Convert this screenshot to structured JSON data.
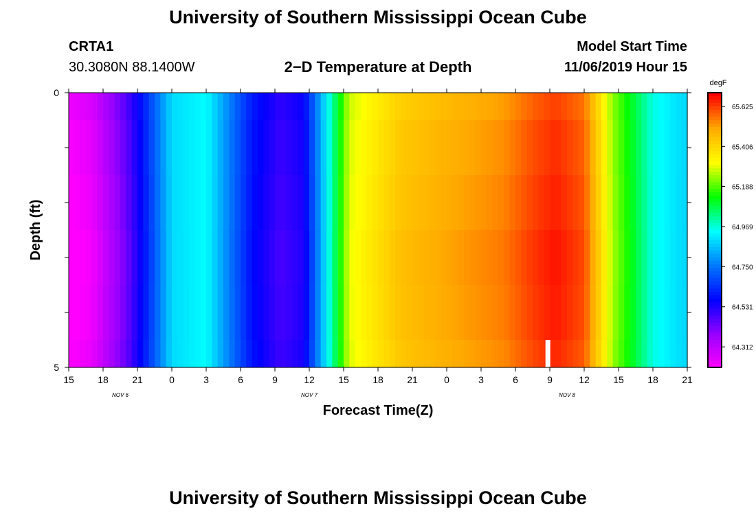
{
  "header": {
    "main_title": "University of Southern Mississippi Ocean Cube",
    "station": "CRTA1",
    "coords": "30.3080N 88.1400W",
    "subtitle": "2−D Temperature at Depth",
    "start_label": "Model Start Time",
    "start_value": "11/06/2019 Hour 15"
  },
  "footer": {
    "title": "University of Southern Mississippi Ocean Cube"
  },
  "chart_data": {
    "type": "heatmap",
    "title": "2−D Temperature at Depth",
    "xlabel": "Forecast Time(Z)",
    "ylabel": "Depth (ft)",
    "x_tick_labels": [
      "15",
      "18",
      "21",
      "0",
      "3",
      "6",
      "9",
      "12",
      "15",
      "18",
      "21",
      "0",
      "3",
      "6",
      "9",
      "12",
      "15",
      "18",
      "21"
    ],
    "date_labels": [
      {
        "text": "NOV 6",
        "tick_index": 1.5
      },
      {
        "text": "NOV 7",
        "tick_index": 7
      },
      {
        "text": "NOV 8",
        "tick_index": 14.5
      }
    ],
    "x_start": "11/06/2019 15Z",
    "x_hours_range": [
      0,
      54
    ],
    "y_tick_labels": [
      "0",
      "5"
    ],
    "y_range": [
      0,
      5
    ],
    "depth_levels": 5,
    "colorbar": {
      "unit": "degF",
      "tick_labels": [
        "65.625",
        "65.406",
        "65.188",
        "64.969",
        "64.750",
        "64.531",
        "64.312"
      ],
      "range": [
        64.2,
        65.7
      ],
      "colors": [
        "#ff00ff",
        "#9900ff",
        "#0000ff",
        "#0077ff",
        "#00ffff",
        "#00ff00",
        "#ffff00",
        "#ffaa00",
        "#ff0000"
      ]
    },
    "profiles": {
      "row_multipliers": [
        0.96,
        0.99,
        1.01,
        1.03,
        1.02,
        1.0
      ],
      "hours_keyframes": [
        0,
        2,
        5,
        6.5,
        9,
        12,
        16,
        18.5,
        20.5,
        24.5,
        29,
        33,
        38,
        40.5,
        42.5,
        45,
        47.5,
        51,
        53.5
      ],
      "temp_keyframes": [
        64.2,
        64.24,
        64.45,
        64.6,
        64.9,
        64.95,
        64.6,
        64.5,
        64.55,
        65.3,
        65.45,
        65.5,
        65.55,
        65.62,
        65.66,
        65.6,
        65.25,
        64.97,
        64.9
      ]
    },
    "marker": {
      "hour": 41.8,
      "depth_from": 4.5,
      "depth_to": 5.0,
      "color": "#ffffff"
    }
  }
}
